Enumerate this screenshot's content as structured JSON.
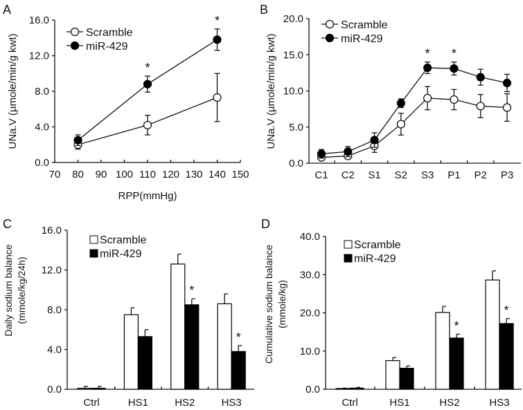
{
  "chart_data": [
    {
      "panel": "A",
      "type": "line",
      "xlabel": "RPP(mmHg)",
      "ylabel": "UNa.V (µmole/min/g kwt)",
      "xlim": [
        70,
        150
      ],
      "ylim": [
        0,
        16
      ],
      "x_ticks": [
        "70",
        "80",
        "90",
        "100",
        "110",
        "120",
        "130",
        "140",
        "150"
      ],
      "y_ticks": [
        "0.0",
        "4.0",
        "8.0",
        "12.0",
        "16.0"
      ],
      "x": [
        80,
        110,
        140
      ],
      "legend": "top-left",
      "series": [
        {
          "name": "Scramble",
          "marker": "open-circle",
          "values": [
            2.0,
            4.2,
            7.3
          ],
          "errors": [
            0.5,
            1.1,
            2.7
          ]
        },
        {
          "name": "miR-429",
          "marker": "filled-circle",
          "values": [
            2.5,
            8.8,
            13.8
          ],
          "errors": [
            0.6,
            0.9,
            1.2
          ]
        }
      ],
      "significance": [
        {
          "x": 110,
          "label": "*"
        },
        {
          "x": 140,
          "label": "*"
        }
      ]
    },
    {
      "panel": "B",
      "type": "line",
      "xlabel": "",
      "ylabel": "UNa.V (µmole/min/g kwt)",
      "ylim": [
        0,
        20
      ],
      "y_ticks": [
        "0.0",
        "5.0",
        "10.0",
        "15.0",
        "20.0"
      ],
      "categories": [
        "C1",
        "C2",
        "S1",
        "S2",
        "S3",
        "P1",
        "P2",
        "P3"
      ],
      "legend": "top-left",
      "series": [
        {
          "name": "Scramble",
          "marker": "open-circle",
          "values": [
            0.8,
            1.0,
            2.4,
            5.4,
            9.0,
            8.8,
            7.9,
            7.7
          ],
          "errors": [
            0.4,
            0.4,
            0.9,
            1.5,
            1.6,
            1.4,
            1.6,
            1.9
          ]
        },
        {
          "name": "miR-429",
          "marker": "filled-circle",
          "values": [
            1.3,
            1.6,
            3.2,
            8.3,
            13.2,
            13.1,
            11.9,
            11.1
          ],
          "errors": [
            0.6,
            0.7,
            1.0,
            0.6,
            0.8,
            0.9,
            1.1,
            1.2
          ]
        }
      ],
      "significance": [
        {
          "category": "S3",
          "label": "*"
        },
        {
          "category": "P1",
          "label": "*"
        }
      ]
    },
    {
      "panel": "C",
      "type": "bar",
      "xlabel": "",
      "ylabel": [
        "Daily sodium balance",
        "(mmole/kg/24h)"
      ],
      "ylim": [
        0,
        16
      ],
      "y_ticks": [
        "0.0",
        "4.0",
        "8.0",
        "12.0",
        "16.0"
      ],
      "categories": [
        "Ctrl",
        "HS1",
        "HS2",
        "HS3"
      ],
      "legend": "top-left",
      "series": [
        {
          "name": "Scramble",
          "color": "#ffffff",
          "values": [
            0.1,
            7.5,
            12.6,
            8.6
          ],
          "errors": [
            0.2,
            0.7,
            1.0,
            1.0
          ]
        },
        {
          "name": "miR-429",
          "color": "#000000",
          "values": [
            0.1,
            5.3,
            8.5,
            3.8
          ],
          "errors": [
            0.2,
            0.7,
            0.6,
            0.6
          ]
        }
      ],
      "significance": [
        {
          "category": "HS2",
          "label": "*"
        },
        {
          "category": "HS3",
          "label": "*"
        }
      ]
    },
    {
      "panel": "D",
      "type": "bar",
      "xlabel": "",
      "ylabel": [
        "Cumulative sodium balance",
        "(mmole/kg)"
      ],
      "ylim": [
        0,
        40
      ],
      "y_ticks": [
        "0.0",
        "10.0",
        "20.0",
        "30.0",
        "40.0"
      ],
      "categories": [
        "Ctrl",
        "HS1",
        "HS2",
        "HS3"
      ],
      "legend": "top-left",
      "series": [
        {
          "name": "Scramble",
          "color": "#ffffff",
          "values": [
            0.2,
            7.5,
            20.1,
            28.6
          ],
          "errors": [
            0.1,
            0.8,
            1.6,
            2.4
          ]
        },
        {
          "name": "miR-429",
          "color": "#000000",
          "values": [
            0.3,
            5.5,
            13.4,
            17.2
          ],
          "errors": [
            0.2,
            0.6,
            1.0,
            1.3
          ]
        }
      ],
      "significance": [
        {
          "category": "HS2",
          "label": "*"
        },
        {
          "category": "HS3",
          "label": "*"
        }
      ]
    }
  ]
}
